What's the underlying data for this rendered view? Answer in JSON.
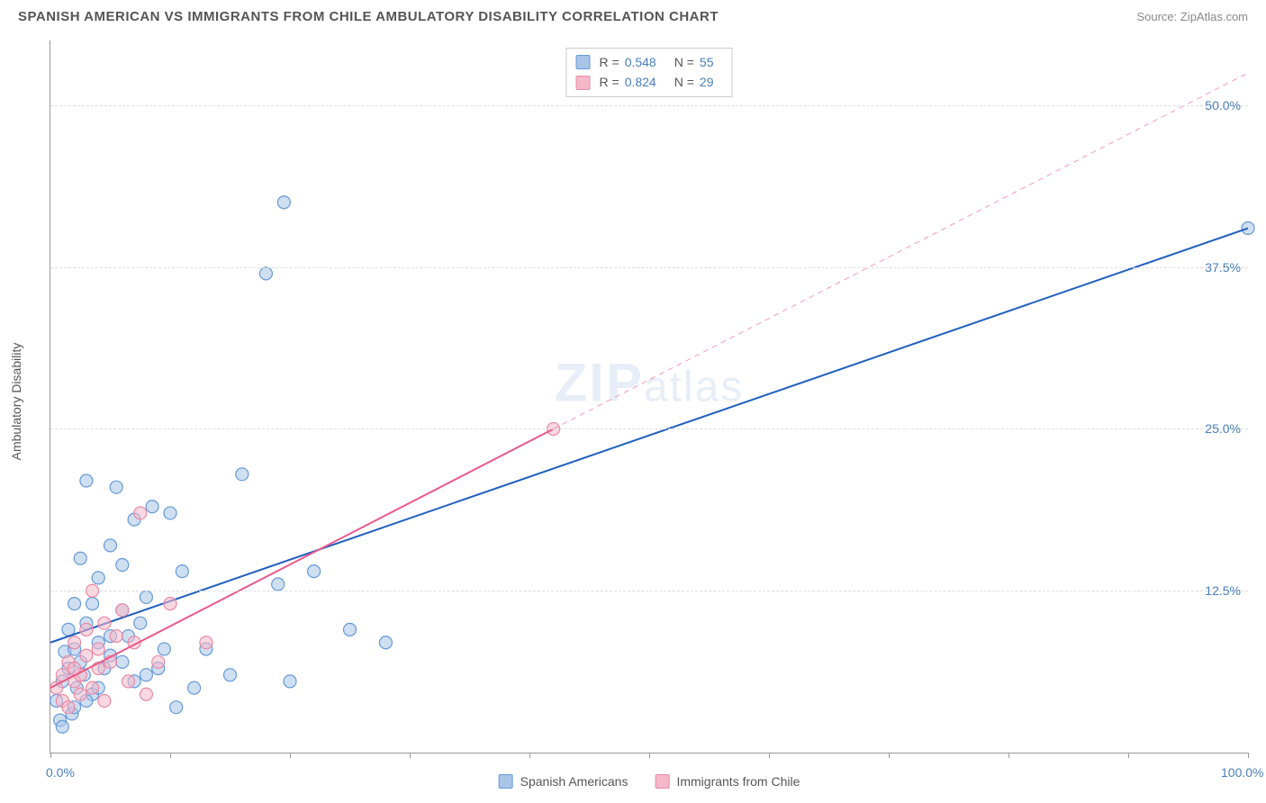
{
  "header": {
    "title": "SPANISH AMERICAN VS IMMIGRANTS FROM CHILE AMBULATORY DISABILITY CORRELATION CHART",
    "source": "Source: ZipAtlas.com"
  },
  "chart": {
    "type": "scatter",
    "y_axis_label": "Ambulatory Disability",
    "watermark": "ZIPatlas",
    "background_color": "#ffffff",
    "grid_color": "#dddddd",
    "axis_color": "#999999",
    "tick_label_color": "#4a7ebb",
    "xlim": [
      0,
      100
    ],
    "ylim": [
      0,
      55
    ],
    "x_ticks": [
      0,
      10,
      20,
      30,
      40,
      50,
      60,
      70,
      80,
      90,
      100
    ],
    "x_tick_labels": {
      "0": "0.0%",
      "100": "100.0%"
    },
    "y_ticks": [
      12.5,
      25.0,
      37.5,
      50.0
    ],
    "y_tick_labels": [
      "12.5%",
      "25.0%",
      "37.5%",
      "50.0%"
    ],
    "marker_radius": 7,
    "marker_opacity": 0.55,
    "line_width": 2,
    "series": [
      {
        "name": "Spanish Americans",
        "color_fill": "#a8c5e8",
        "color_stroke": "#6699d8",
        "line_color": "#1f5fbf",
        "R": "0.548",
        "N": "55",
        "trend": {
          "x1": 0,
          "y1": 8.5,
          "x2": 100,
          "y2": 40.5,
          "dash": "none"
        },
        "points": [
          [
            0.5,
            4.0
          ],
          [
            0.8,
            2.5
          ],
          [
            1.0,
            5.5
          ],
          [
            1.2,
            7.8
          ],
          [
            1.5,
            6.5
          ],
          [
            1.5,
            9.5
          ],
          [
            1.8,
            3.0
          ],
          [
            2.0,
            8.0
          ],
          [
            2.0,
            11.5
          ],
          [
            2.2,
            5.0
          ],
          [
            2.5,
            7.0
          ],
          [
            2.5,
            15.0
          ],
          [
            2.8,
            6.0
          ],
          [
            3.0,
            10.0
          ],
          [
            3.0,
            21.0
          ],
          [
            3.5,
            4.5
          ],
          [
            3.5,
            11.5
          ],
          [
            4.0,
            8.5
          ],
          [
            4.0,
            13.5
          ],
          [
            4.5,
            6.5
          ],
          [
            5.0,
            16.0
          ],
          [
            5.0,
            7.5
          ],
          [
            5.5,
            20.5
          ],
          [
            6.0,
            11.0
          ],
          [
            6.0,
            14.5
          ],
          [
            6.5,
            9.0
          ],
          [
            7.0,
            5.5
          ],
          [
            7.0,
            18.0
          ],
          [
            8.0,
            12.0
          ],
          [
            8.5,
            19.0
          ],
          [
            9.0,
            6.5
          ],
          [
            10.0,
            18.5
          ],
          [
            10.5,
            3.5
          ],
          [
            11.0,
            14.0
          ],
          [
            12.0,
            5.0
          ],
          [
            13.0,
            8.0
          ],
          [
            15.0,
            6.0
          ],
          [
            16.0,
            21.5
          ],
          [
            18.0,
            37.0
          ],
          [
            19.0,
            13.0
          ],
          [
            19.5,
            42.5
          ],
          [
            20.0,
            5.5
          ],
          [
            22.0,
            14.0
          ],
          [
            25.0,
            9.5
          ],
          [
            28.0,
            8.5
          ],
          [
            1.0,
            2.0
          ],
          [
            2.0,
            3.5
          ],
          [
            3.0,
            4.0
          ],
          [
            4.0,
            5.0
          ],
          [
            5.0,
            9.0
          ],
          [
            6.0,
            7.0
          ],
          [
            7.5,
            10.0
          ],
          [
            8.0,
            6.0
          ],
          [
            9.5,
            8.0
          ],
          [
            100.0,
            40.5
          ]
        ]
      },
      {
        "name": "Immigrants from Chile",
        "color_fill": "#f5b8c8",
        "color_stroke": "#e88aa5",
        "line_color": "#e85a8a",
        "R": "0.824",
        "N": "29",
        "trend": {
          "x1": 0,
          "y1": 5.0,
          "x2": 42,
          "y2": 25.0,
          "dash": "none"
        },
        "trend_ext": {
          "x1": 42,
          "y1": 25.0,
          "x2": 100,
          "y2": 52.5,
          "dash": "6,5"
        },
        "points": [
          [
            0.5,
            5.0
          ],
          [
            1.0,
            6.0
          ],
          [
            1.0,
            4.0
          ],
          [
            1.5,
            7.0
          ],
          [
            1.5,
            3.5
          ],
          [
            2.0,
            5.5
          ],
          [
            2.0,
            8.5
          ],
          [
            2.5,
            6.0
          ],
          [
            2.5,
            4.5
          ],
          [
            3.0,
            7.5
          ],
          [
            3.0,
            9.5
          ],
          [
            3.5,
            5.0
          ],
          [
            3.5,
            12.5
          ],
          [
            4.0,
            8.0
          ],
          [
            4.0,
            6.5
          ],
          [
            4.5,
            10.0
          ],
          [
            4.5,
            4.0
          ],
          [
            5.0,
            7.0
          ],
          [
            5.5,
            9.0
          ],
          [
            6.0,
            11.0
          ],
          [
            6.5,
            5.5
          ],
          [
            7.0,
            8.5
          ],
          [
            7.5,
            18.5
          ],
          [
            8.0,
            4.5
          ],
          [
            9.0,
            7.0
          ],
          [
            10.0,
            11.5
          ],
          [
            13.0,
            8.5
          ],
          [
            42.0,
            25.0
          ],
          [
            2.0,
            6.5
          ]
        ]
      }
    ]
  }
}
